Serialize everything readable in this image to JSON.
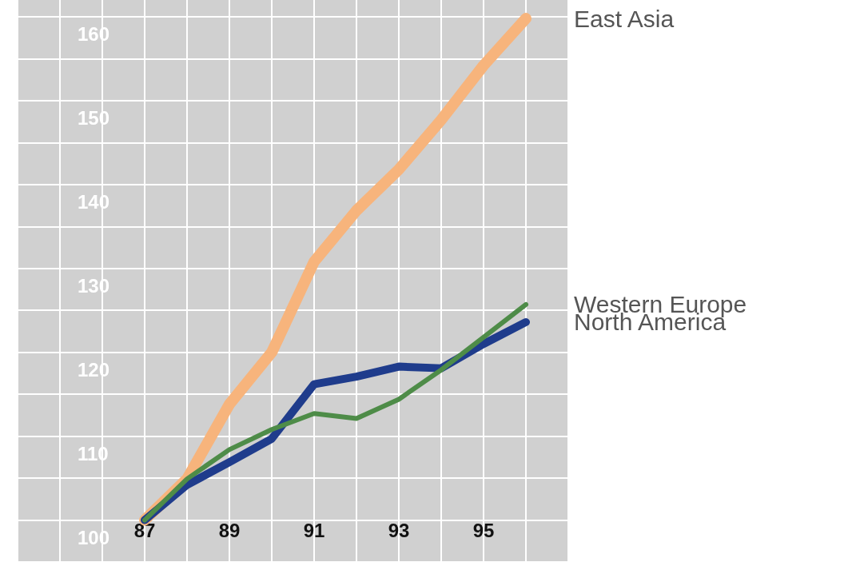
{
  "chart_data": {
    "type": "line",
    "x": [
      87,
      88,
      89,
      90,
      91,
      92,
      93,
      94,
      95,
      96
    ],
    "series": [
      {
        "name": "East Asia",
        "color": "#f7b47c",
        "values": [
          100,
          104.9,
          113.8,
          120,
          130.8,
          136.9,
          141.8,
          147.7,
          154.2,
          159.8
        ]
      },
      {
        "name": "North America",
        "color": "#1f3c8c",
        "values": [
          100,
          104.2,
          106.9,
          109.7,
          116.2,
          117.1,
          118.3,
          118.1,
          121,
          123.6
        ]
      },
      {
        "name": "Western Europe",
        "color": "#4e8c48",
        "values": [
          100,
          104.9,
          108.4,
          110.8,
          112.7,
          112.1,
          114.4,
          117.9,
          121.8,
          125.7
        ]
      }
    ],
    "xlim": [
      84,
      97
    ],
    "xticks": [
      {
        "value": 84,
        "label": null
      },
      {
        "value": 85,
        "label": null
      },
      {
        "value": 86,
        "label": null
      },
      87,
      {
        "value": 88,
        "label": null
      },
      89,
      {
        "value": 90,
        "label": null
      },
      91,
      {
        "value": 92,
        "label": null
      },
      93,
      {
        "value": 94,
        "label": null
      },
      95,
      {
        "value": 96,
        "label": null
      },
      {
        "value": 97,
        "label": null
      }
    ],
    "ylim": [
      95,
      162
    ],
    "yticks": [
      {
        "value": 95,
        "label": null
      },
      100,
      {
        "value": 105,
        "label": null
      },
      110,
      {
        "value": 115,
        "label": null
      },
      120,
      {
        "value": 125,
        "label": null
      },
      130,
      {
        "value": 135,
        "label": null
      },
      140,
      {
        "value": 145,
        "label": null
      },
      150,
      {
        "value": 155,
        "label": null
      },
      160
    ],
    "grid": true
  }
}
